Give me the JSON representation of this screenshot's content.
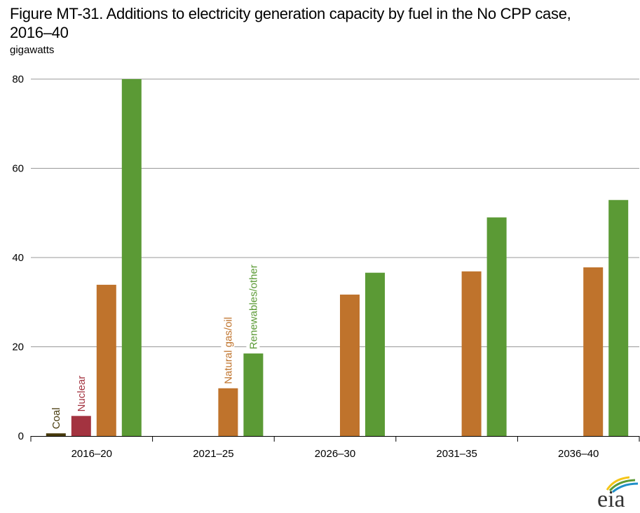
{
  "title": "Figure MT-31. Additions to electricity generation capacity by fuel in the No CPP case, 2016–40",
  "title_line1": "Figure MT-31. Additions to electricity generation capacity by fuel in the No CPP case,",
  "title_line2": "2016–40",
  "units": "gigawatts",
  "logo": {
    "text": "eia",
    "icon": "eia-logo-icon",
    "colors": [
      "#f5c518",
      "#5b9a35",
      "#1f8fc8"
    ]
  },
  "chart_data": {
    "type": "bar",
    "title": "Additions to electricity generation capacity by fuel in the No CPP case, 2016–40",
    "xlabel": "",
    "ylabel": "gigawatts",
    "ylim": [
      0,
      80
    ],
    "yticks": [
      0,
      20,
      40,
      60,
      80
    ],
    "grid": true,
    "legend": "inline-rotated-labels",
    "categories": [
      "2016–20",
      "2021–25",
      "2026–30",
      "2031–35",
      "2036–40"
    ],
    "series": [
      {
        "name": "Coal",
        "color": "#473a0c",
        "values": [
          0.6,
          0,
          0,
          0,
          0
        ]
      },
      {
        "name": "Nuclear",
        "color": "#a33340",
        "values": [
          4.5,
          0,
          0,
          0,
          0
        ]
      },
      {
        "name": "Natural gas/oil",
        "color": "#bf732c",
        "values": [
          33.9,
          10.7,
          31.7,
          36.9,
          37.8
        ]
      },
      {
        "name": "Renewables/other",
        "color": "#5b9a35",
        "values": [
          80.0,
          18.5,
          36.6,
          49.0,
          52.9
        ]
      }
    ],
    "series_labels": [
      {
        "name": "Coal",
        "category": "2016–20"
      },
      {
        "name": "Nuclear",
        "category": "2016–20"
      },
      {
        "name": "Natural gas/oil",
        "category": "2021–25"
      },
      {
        "name": "Renewables/other",
        "category": "2021–25"
      }
    ]
  }
}
